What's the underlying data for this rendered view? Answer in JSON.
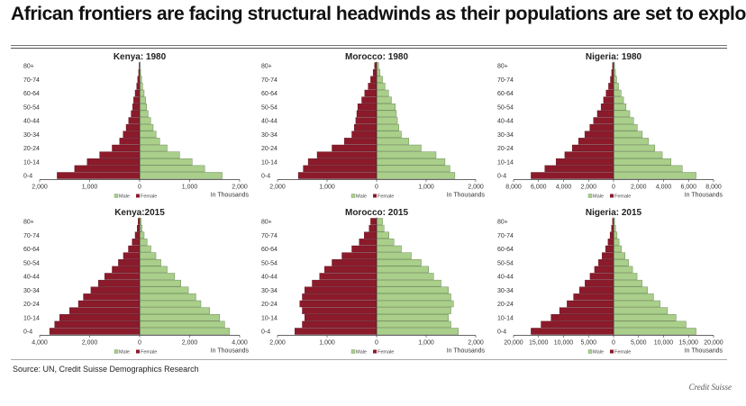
{
  "headline": "African frontiers are facing structural headwinds as their populations are set to explode.",
  "source": "Source: UN, Credit Suisse Demographics Research",
  "credit": "Credit Suisse",
  "colors": {
    "male": "#a9cf8a",
    "female": "#8b1a2b"
  },
  "chart_data": [
    {
      "type": "bar",
      "title": "Kenya: 1980",
      "categories": [
        "0-4",
        "5-9",
        "10-14",
        "15-19",
        "20-24",
        "25-29",
        "30-34",
        "35-39",
        "40-44",
        "45-49",
        "50-54",
        "55-59",
        "60-64",
        "65-69",
        "70-74",
        "75-79",
        "80+"
      ],
      "category_labels": [
        "0-4",
        "",
        "10-14",
        "",
        "20-24",
        "",
        "30-34",
        "",
        "40-44",
        "",
        "50-54",
        "",
        "60-64",
        "",
        "70-74",
        "",
        "80+"
      ],
      "series": [
        {
          "name": "Male",
          "values": [
            1650,
            1300,
            1050,
            800,
            550,
            400,
            330,
            270,
            220,
            170,
            140,
            120,
            90,
            60,
            40,
            20,
            10
          ]
        },
        {
          "name": "Female",
          "values": [
            -1650,
            -1300,
            -1050,
            -800,
            -550,
            -400,
            -330,
            -270,
            -220,
            -170,
            -140,
            -120,
            -90,
            -60,
            -40,
            -20,
            -10
          ]
        }
      ],
      "xlim": [
        -2000,
        2000
      ],
      "xticks": [
        -2000,
        -1000,
        0,
        1000,
        2000
      ],
      "xtick_labels": [
        "2,000",
        "1,000",
        "0",
        "1,000",
        "2,000"
      ],
      "unit": "In Thousands",
      "legend": [
        "Male",
        "Female"
      ]
    },
    {
      "type": "bar",
      "title": "Morocco: 1980",
      "categories": [
        "0-4",
        "5-9",
        "10-14",
        "15-19",
        "20-24",
        "25-29",
        "30-34",
        "35-39",
        "40-44",
        "45-49",
        "50-54",
        "55-59",
        "60-64",
        "65-69",
        "70-74",
        "75-79",
        "80+"
      ],
      "category_labels": [
        "0-4",
        "",
        "10-14",
        "",
        "20-24",
        "",
        "30-34",
        "",
        "40-44",
        "",
        "50-54",
        "",
        "60-64",
        "",
        "70-74",
        "",
        "80+"
      ],
      "series": [
        {
          "name": "Male",
          "values": [
            1580,
            1480,
            1380,
            1200,
            900,
            650,
            500,
            450,
            420,
            400,
            380,
            300,
            240,
            170,
            120,
            70,
            40
          ]
        },
        {
          "name": "Female",
          "values": [
            -1580,
            -1480,
            -1380,
            -1200,
            -900,
            -650,
            -500,
            -450,
            -420,
            -400,
            -380,
            -300,
            -240,
            -170,
            -120,
            -70,
            -40
          ]
        }
      ],
      "xlim": [
        -2000,
        2000
      ],
      "xticks": [
        -2000,
        -1000,
        0,
        1000,
        2000
      ],
      "xtick_labels": [
        "2,000",
        "1,000",
        "0",
        "1,000",
        "2,000"
      ],
      "unit": "In Thousands",
      "legend": [
        "Male",
        "Female"
      ]
    },
    {
      "type": "bar",
      "title": "Nigeria: 1980",
      "categories": [
        "0-4",
        "5-9",
        "10-14",
        "15-19",
        "20-24",
        "25-29",
        "30-34",
        "35-39",
        "40-44",
        "45-49",
        "50-54",
        "55-59",
        "60-64",
        "65-69",
        "70-74",
        "75-79",
        "80+"
      ],
      "category_labels": [
        "0-4",
        "",
        "10-14",
        "",
        "20-24",
        "",
        "30-34",
        "",
        "40-44",
        "",
        "50-54",
        "",
        "60-64",
        "",
        "70-74",
        "",
        "80+"
      ],
      "series": [
        {
          "name": "Male",
          "values": [
            6600,
            5500,
            4600,
            3900,
            3300,
            2800,
            2300,
            1900,
            1600,
            1300,
            1000,
            800,
            600,
            400,
            250,
            150,
            80
          ]
        },
        {
          "name": "Female",
          "values": [
            -6600,
            -5500,
            -4600,
            -3900,
            -3300,
            -2800,
            -2300,
            -1900,
            -1600,
            -1300,
            -1000,
            -800,
            -600,
            -400,
            -250,
            -150,
            -80
          ]
        }
      ],
      "xlim": [
        -8000,
        8000
      ],
      "xticks": [
        -8000,
        -6000,
        -4000,
        -2000,
        0,
        2000,
        4000,
        6000,
        8000
      ],
      "xtick_labels": [
        "8,000",
        "6,000",
        "4,000",
        "2,000",
        "0",
        "2,000",
        "4,000",
        "6,000",
        "8,000"
      ],
      "unit": "In Thousands",
      "legend": [
        "Male",
        "Female"
      ]
    },
    {
      "type": "bar",
      "title": "Kenya:2015",
      "categories": [
        "0-4",
        "5-9",
        "10-14",
        "15-19",
        "20-24",
        "25-29",
        "30-34",
        "35-39",
        "40-44",
        "45-49",
        "50-54",
        "55-59",
        "60-64",
        "65-69",
        "70-74",
        "75-79",
        "80+"
      ],
      "category_labels": [
        "0-4",
        "",
        "10-14",
        "",
        "20-24",
        "",
        "30-34",
        "",
        "40-44",
        "",
        "50-54",
        "",
        "60-64",
        "",
        "70-74",
        "",
        "80+"
      ],
      "series": [
        {
          "name": "Male",
          "values": [
            3600,
            3400,
            3200,
            2800,
            2450,
            2250,
            1950,
            1650,
            1400,
            1100,
            850,
            650,
            450,
            300,
            180,
            100,
            60
          ]
        },
        {
          "name": "Female",
          "values": [
            -3600,
            -3400,
            -3200,
            -2800,
            -2450,
            -2250,
            -1950,
            -1650,
            -1400,
            -1100,
            -850,
            -650,
            -450,
            -300,
            -180,
            -100,
            -60
          ]
        }
      ],
      "xlim": [
        -4000,
        4000
      ],
      "xticks": [
        -4000,
        -2000,
        0,
        2000,
        4000
      ],
      "xtick_labels": [
        "4,000",
        "2,000",
        "0",
        "2,000",
        "4,000"
      ],
      "unit": "In Thousands",
      "legend": [
        "Male",
        "Female"
      ]
    },
    {
      "type": "bar",
      "title": "Morocco: 2015",
      "categories": [
        "0-4",
        "5-9",
        "10-14",
        "15-19",
        "20-24",
        "25-29",
        "30-34",
        "35-39",
        "40-44",
        "45-49",
        "50-54",
        "55-59",
        "60-64",
        "65-69",
        "70-74",
        "75-79",
        "80+"
      ],
      "category_labels": [
        "0-4",
        "",
        "10-14",
        "",
        "20-24",
        "",
        "30-34",
        "",
        "40-44",
        "",
        "50-54",
        "",
        "60-64",
        "",
        "70-74",
        "",
        "80+"
      ],
      "series": [
        {
          "name": "Male",
          "values": [
            1650,
            1500,
            1450,
            1500,
            1550,
            1500,
            1450,
            1300,
            1150,
            1050,
            900,
            700,
            500,
            350,
            250,
            150,
            120
          ]
        },
        {
          "name": "Female",
          "values": [
            -1650,
            -1500,
            -1450,
            -1500,
            -1550,
            -1500,
            -1450,
            -1300,
            -1150,
            -1050,
            -900,
            -700,
            -500,
            -350,
            -250,
            -150,
            -120
          ]
        }
      ],
      "xlim": [
        -2000,
        2000
      ],
      "xticks": [
        -2000,
        -1000,
        0,
        1000,
        2000
      ],
      "xtick_labels": [
        "2,000",
        "1,000",
        "0",
        "1,000",
        "2,000"
      ],
      "unit": "In Thousands",
      "legend": [
        "Male",
        "Female"
      ]
    },
    {
      "type": "bar",
      "title": "Nigeria: 2015",
      "categories": [
        "0-4",
        "5-9",
        "10-14",
        "15-19",
        "20-24",
        "25-29",
        "30-34",
        "35-39",
        "40-44",
        "45-49",
        "50-54",
        "55-59",
        "60-64",
        "65-69",
        "70-74",
        "75-79",
        "80+"
      ],
      "category_labels": [
        "0-4",
        "",
        "10-14",
        "",
        "20-24",
        "",
        "30-34",
        "",
        "40-44",
        "",
        "50-54",
        "",
        "60-64",
        "",
        "70-74",
        "",
        "80+"
      ],
      "series": [
        {
          "name": "Male",
          "values": [
            16500,
            14500,
            12500,
            10800,
            9300,
            8000,
            6800,
            5700,
            4700,
            3800,
            3000,
            2300,
            1600,
            1100,
            700,
            400,
            200
          ]
        },
        {
          "name": "Female",
          "values": [
            -16500,
            -14500,
            -12500,
            -10800,
            -9300,
            -8000,
            -6800,
            -5700,
            -4700,
            -3800,
            -3000,
            -2300,
            -1600,
            -1100,
            -700,
            -400,
            -200
          ]
        }
      ],
      "xlim": [
        -20000,
        20000
      ],
      "xticks": [
        -20000,
        -15000,
        -10000,
        -5000,
        0,
        5000,
        10000,
        15000,
        20000
      ],
      "xtick_labels": [
        "20,000",
        "15,000",
        "10,000",
        "5,000",
        "0",
        "5,000",
        "10,000",
        "15,000",
        "20,000"
      ],
      "unit": "In Thousands",
      "legend": [
        "Male",
        "Female"
      ]
    }
  ]
}
